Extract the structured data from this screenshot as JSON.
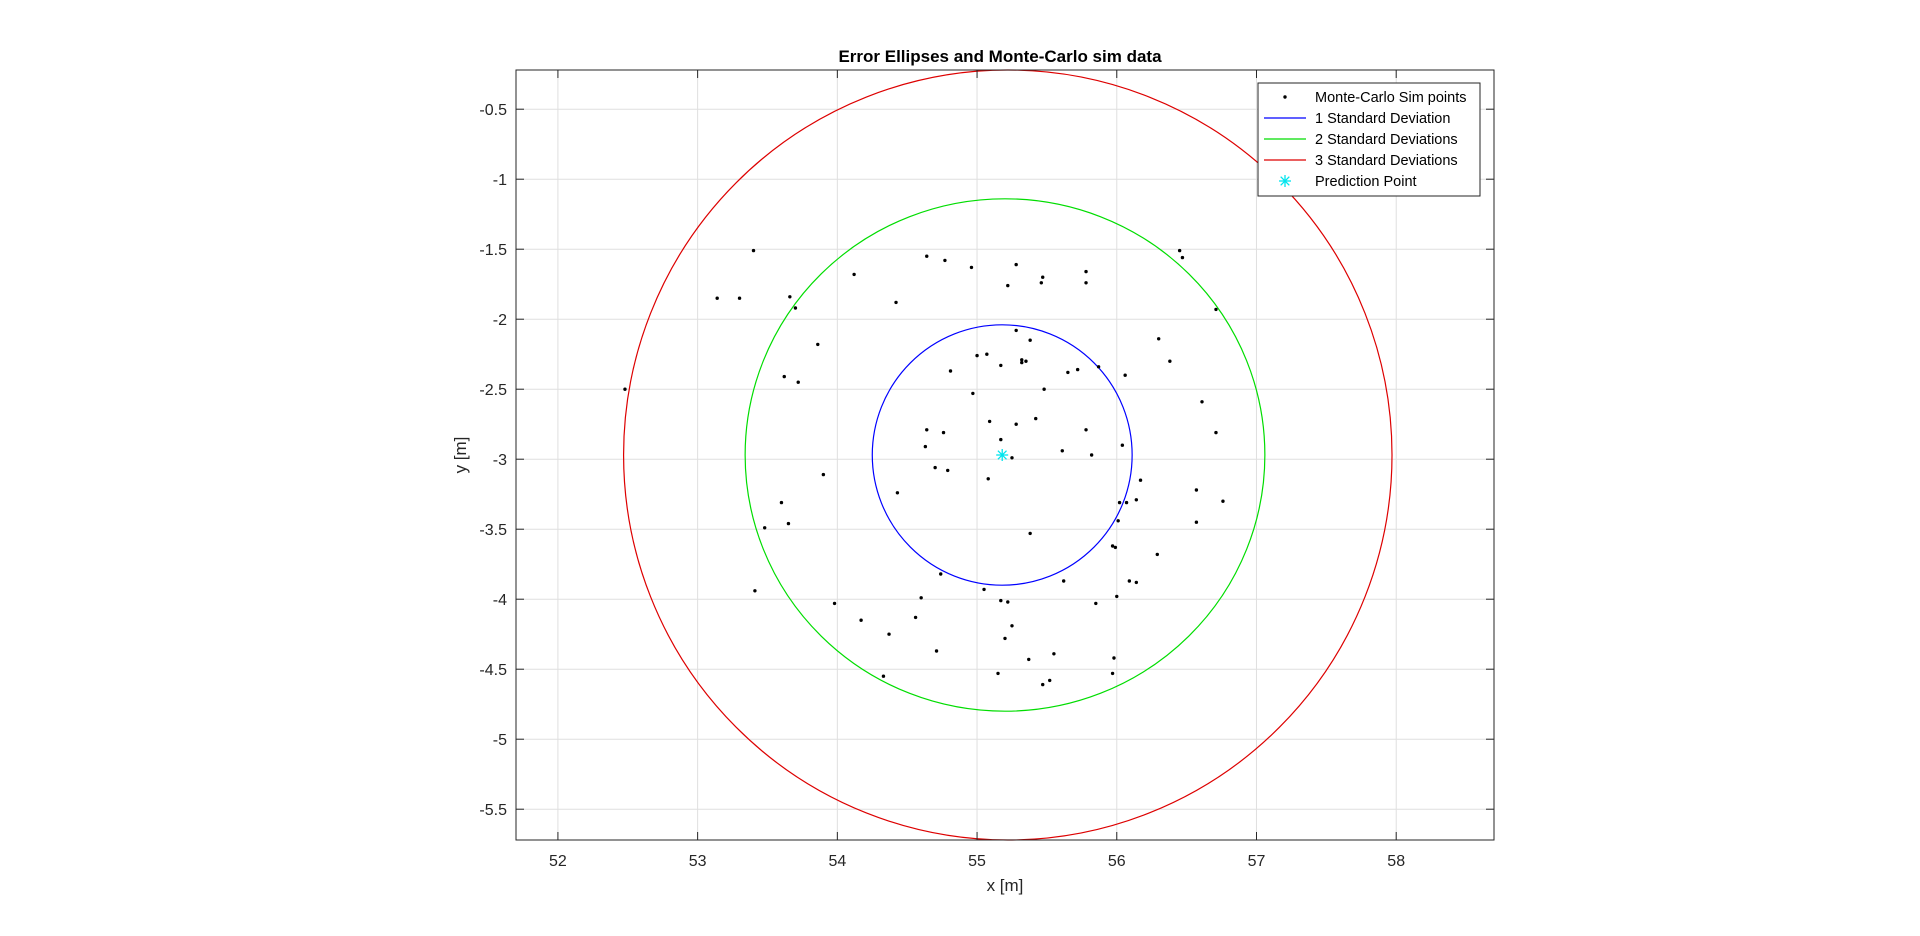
{
  "chart_data": {
    "type": "scatter",
    "title": "Error Ellipses and Monte-Carlo sim data",
    "xlabel": "x [m]",
    "ylabel": "y [m]",
    "xlim": [
      51.7,
      58.7
    ],
    "ylim": [
      -5.72,
      -0.22
    ],
    "grid": true,
    "x_ticks": [
      52,
      53,
      54,
      55,
      56,
      57,
      58
    ],
    "x_tick_labels": [
      "52",
      "53",
      "54",
      "55",
      "56",
      "57",
      "58"
    ],
    "y_ticks": [
      -0.5,
      -1,
      -1.5,
      -2,
      -2.5,
      -3,
      -3.5,
      -4,
      -4.5,
      -5,
      -5.5
    ],
    "y_tick_labels": [
      "-0.5",
      "-1",
      "-1.5",
      "-2",
      "-2.5",
      "-3",
      "-3.5",
      "-4",
      "-4.5",
      "-5",
      "-5.5"
    ],
    "legend_position": "top-right",
    "series": [
      {
        "name": "Monte-Carlo Sim points",
        "type": "scatter",
        "color": "#000000",
        "marker": "dot",
        "points": [
          [
            52.48,
            -2.5
          ],
          [
            53.14,
            -1.85
          ],
          [
            53.3,
            -1.85
          ],
          [
            53.4,
            -1.51
          ],
          [
            53.66,
            -1.84
          ],
          [
            53.7,
            -1.92
          ],
          [
            53.62,
            -2.41
          ],
          [
            53.72,
            -2.45
          ],
          [
            53.86,
            -2.18
          ],
          [
            53.9,
            -3.11
          ],
          [
            53.6,
            -3.31
          ],
          [
            53.65,
            -3.46
          ],
          [
            53.48,
            -3.49
          ],
          [
            53.41,
            -3.94
          ],
          [
            53.98,
            -4.03
          ],
          [
            54.17,
            -4.15
          ],
          [
            54.12,
            -1.68
          ],
          [
            54.42,
            -1.88
          ],
          [
            54.64,
            -1.55
          ],
          [
            54.77,
            -1.58
          ],
          [
            54.96,
            -1.63
          ],
          [
            55.28,
            -1.61
          ],
          [
            55.22,
            -1.76
          ],
          [
            55.46,
            -1.74
          ],
          [
            55.47,
            -1.7
          ],
          [
            55.78,
            -1.66
          ],
          [
            55.78,
            -1.74
          ],
          [
            56.45,
            -1.51
          ],
          [
            56.47,
            -1.56
          ],
          [
            56.71,
            -1.93
          ],
          [
            55.87,
            -2.34
          ],
          [
            56.06,
            -2.4
          ],
          [
            56.3,
            -2.14
          ],
          [
            56.38,
            -2.3
          ],
          [
            56.61,
            -2.59
          ],
          [
            56.71,
            -2.81
          ],
          [
            56.04,
            -2.9
          ],
          [
            55.28,
            -2.08
          ],
          [
            55.38,
            -2.15
          ],
          [
            55.0,
            -2.26
          ],
          [
            55.07,
            -2.25
          ],
          [
            54.81,
            -2.37
          ],
          [
            55.17,
            -2.33
          ],
          [
            55.32,
            -2.29
          ],
          [
            55.32,
            -2.31
          ],
          [
            55.35,
            -2.3
          ],
          [
            55.48,
            -2.5
          ],
          [
            55.65,
            -2.38
          ],
          [
            55.72,
            -2.36
          ],
          [
            54.97,
            -2.53
          ],
          [
            55.09,
            -2.73
          ],
          [
            55.28,
            -2.75
          ],
          [
            55.42,
            -2.71
          ],
          [
            55.17,
            -2.86
          ],
          [
            54.64,
            -2.79
          ],
          [
            54.76,
            -2.81
          ],
          [
            54.63,
            -2.91
          ],
          [
            54.7,
            -3.06
          ],
          [
            54.79,
            -3.08
          ],
          [
            55.08,
            -3.14
          ],
          [
            55.25,
            -2.99
          ],
          [
            55.61,
            -2.94
          ],
          [
            55.78,
            -2.79
          ],
          [
            55.82,
            -2.97
          ],
          [
            56.17,
            -3.15
          ],
          [
            56.57,
            -3.22
          ],
          [
            56.76,
            -3.3
          ],
          [
            56.02,
            -3.31
          ],
          [
            56.07,
            -3.31
          ],
          [
            56.14,
            -3.29
          ],
          [
            56.01,
            -3.44
          ],
          [
            55.97,
            -3.62
          ],
          [
            55.99,
            -3.63
          ],
          [
            56.29,
            -3.68
          ],
          [
            56.57,
            -3.45
          ],
          [
            55.38,
            -3.53
          ],
          [
            55.62,
            -3.87
          ],
          [
            56.09,
            -3.87
          ],
          [
            56.14,
            -3.88
          ],
          [
            56.0,
            -3.98
          ],
          [
            55.85,
            -4.03
          ],
          [
            54.43,
            -3.24
          ],
          [
            54.74,
            -3.82
          ],
          [
            54.6,
            -3.99
          ],
          [
            55.05,
            -3.93
          ],
          [
            55.17,
            -4.01
          ],
          [
            55.22,
            -4.02
          ],
          [
            55.25,
            -4.19
          ],
          [
            55.2,
            -4.28
          ],
          [
            54.56,
            -4.13
          ],
          [
            54.37,
            -4.25
          ],
          [
            54.71,
            -4.37
          ],
          [
            54.33,
            -4.55
          ],
          [
            55.15,
            -4.53
          ],
          [
            55.37,
            -4.43
          ],
          [
            55.55,
            -4.39
          ],
          [
            55.52,
            -4.58
          ],
          [
            55.47,
            -4.61
          ],
          [
            55.98,
            -4.42
          ],
          [
            55.97,
            -4.53
          ]
        ]
      },
      {
        "name": "1 Standard Deviation",
        "type": "ellipse",
        "color": "#0000ff",
        "center": [
          55.18,
          -2.97
        ],
        "semi_axes": [
          0.93,
          0.93
        ],
        "angle_deg": 0
      },
      {
        "name": "2 Standard Deviations",
        "type": "ellipse",
        "color": "#00dd00",
        "center": [
          55.2,
          -2.97
        ],
        "semi_axes": [
          1.86,
          1.83
        ],
        "angle_deg": 0
      },
      {
        "name": "3 Standard Deviations",
        "type": "ellipse",
        "color": "#dd0000",
        "center": [
          55.22,
          -2.97
        ],
        "semi_axes": [
          2.75,
          2.75
        ],
        "angle_deg": 0
      },
      {
        "name": "Prediction Point",
        "type": "marker",
        "color": "#00e5ee",
        "marker": "asterisk",
        "points": [
          [
            55.18,
            -2.97
          ]
        ]
      }
    ]
  }
}
